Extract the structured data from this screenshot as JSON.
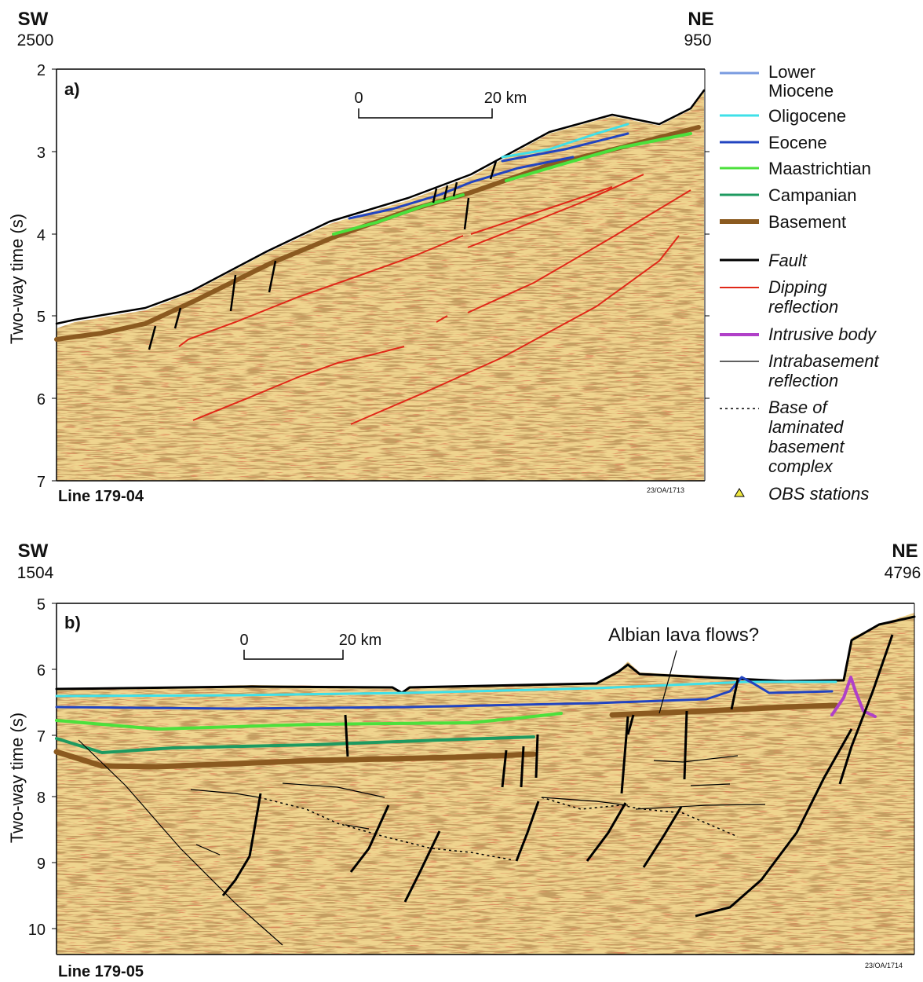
{
  "panel_a": {
    "dir_left": "SW",
    "dir_right": "NE",
    "cdp_left": "2500",
    "cdp_right": "950",
    "panel_label": "a)",
    "line_label": "Line 179-04",
    "figure_code": "23/OA/1713",
    "scale_start": "0",
    "scale_end": "20 km",
    "yaxis_label": "Two-way time (s)",
    "yticks": [
      "2",
      "3",
      "4",
      "5",
      "6",
      "7"
    ]
  },
  "panel_b": {
    "dir_left": "SW",
    "dir_right": "NE",
    "cdp_left": "1504",
    "cdp_right": "4796",
    "panel_label": "b)",
    "line_label": "Line 179-05",
    "figure_code": "23/OA/1714",
    "scale_start": "0",
    "scale_end": "20 km",
    "yaxis_label": "Two-way time (s)",
    "yticks": [
      "5",
      "6",
      "7",
      "8",
      "9",
      "10"
    ],
    "annotation": "Albian lava flows?"
  },
  "legend": {
    "lower_miocene_1": "Lower",
    "lower_miocene_2": "Miocene",
    "oligocene": "Oligocene",
    "eocene": "Eocene",
    "maastrichtian": "Maastrichtian",
    "campanian": "Campanian",
    "basement": "Basement",
    "fault": "Fault",
    "dipping_1": "Dipping",
    "dipping_2": "reflection",
    "intrusive": "Intrusive body",
    "intrabasement_1": "Intrabasement",
    "intrabasement_2": "reflection",
    "base_1": "Base of",
    "base_2": "laminated",
    "base_3": "basement",
    "base_4": "complex",
    "obs": "OBS stations"
  },
  "colors": {
    "lower_miocene": "#7a9be0",
    "oligocene": "#3fe0e8",
    "eocene": "#2244c0",
    "maastrichtian": "#4ce03c",
    "campanian": "#1e9a60",
    "basement": "#8b5a20",
    "fault": "#000000",
    "dipping": "#e02818",
    "intrusive": "#b040c8",
    "seismic_bg": "#efd48e"
  }
}
